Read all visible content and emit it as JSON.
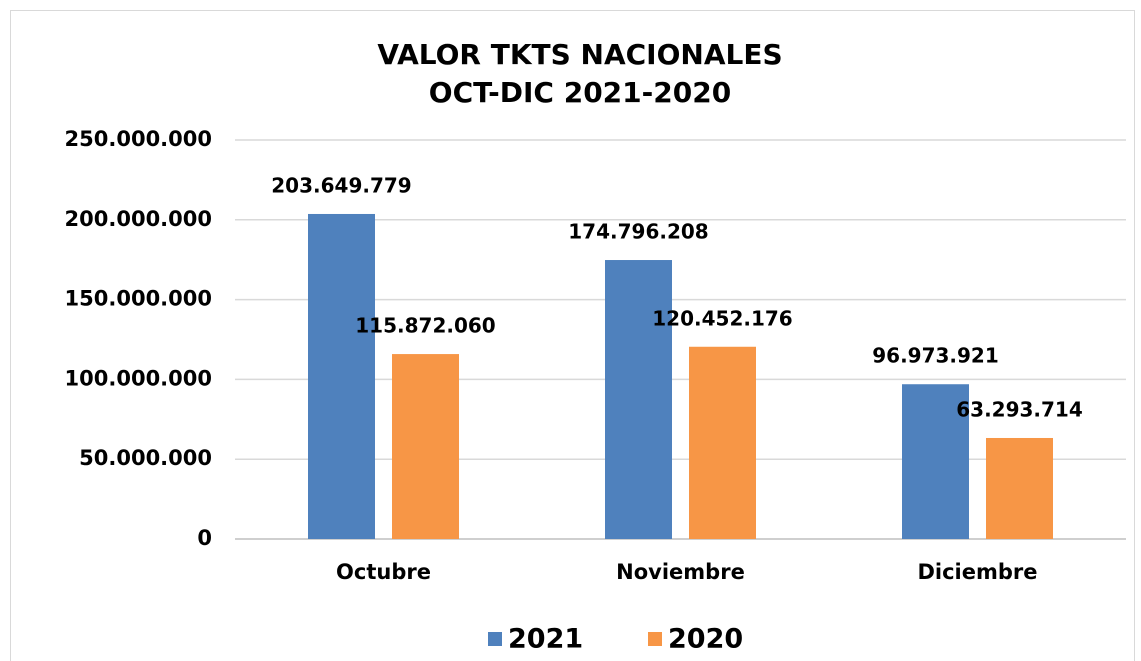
{
  "chart_data": {
    "type": "bar",
    "title": "VALOR TKTS NACIONALES",
    "subtitle": "OCT-DIC 2021-2020",
    "categories": [
      "Octubre",
      "Noviembre",
      "Diciembre"
    ],
    "series": [
      {
        "name": "2021",
        "color": "#4f81bd",
        "values": [
          203649779,
          174796208,
          96973921
        ],
        "value_labels": [
          "203.649.779",
          "174.796.208",
          "96.973.921"
        ]
      },
      {
        "name": "2020",
        "color": "#f79646",
        "values": [
          115872060,
          120452176,
          63293714
        ],
        "value_labels": [
          "115.872.060",
          "120.452.176",
          "63.293.714"
        ]
      }
    ],
    "ylim": [
      0,
      250000000
    ],
    "yticks": [
      0,
      {
        "value": 50000000,
        "label": "50.000.000"
      },
      {
        "value": 100000000,
        "label": "100.000.000"
      },
      {
        "value": 150000000,
        "label": "150.000.000"
      },
      {
        "value": 200000000,
        "label": "200.000.000"
      },
      {
        "value": 250000000,
        "label": "250.000.000"
      }
    ],
    "grid": true,
    "legend": "bottom"
  }
}
